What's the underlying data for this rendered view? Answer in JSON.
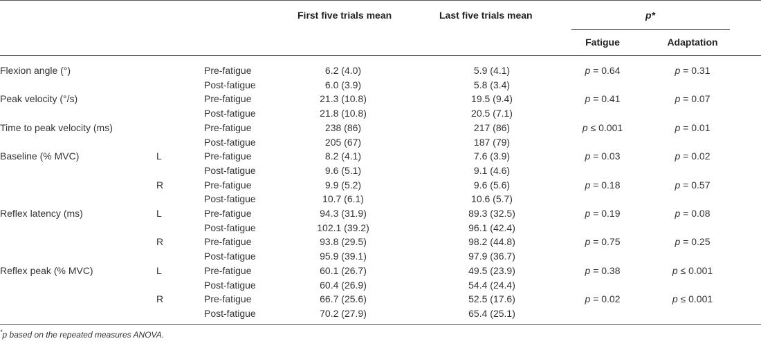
{
  "headers": {
    "first": "First five trials mean",
    "last": "Last five trials mean",
    "p": "p*",
    "fatigue": "Fatigue",
    "adaptation": "Adaptation"
  },
  "rows": [
    {
      "label": "Flexion angle (°)",
      "side": "",
      "cond": "Pre-fatigue",
      "first": "6.2 (4.0)",
      "last": "5.9 (4.1)",
      "fatigue": "p = 0.64",
      "adaptation": "p = 0.31"
    },
    {
      "label": "",
      "side": "",
      "cond": "Post-fatigue",
      "first": "6.0 (3.9)",
      "last": "5.8 (3.4)",
      "fatigue": "",
      "adaptation": ""
    },
    {
      "label": "Peak velocity (°/s)",
      "side": "",
      "cond": "Pre-fatigue",
      "first": "21.3 (10.8)",
      "last": "19.5 (9.4)",
      "fatigue": "p = 0.41",
      "adaptation": "p = 0.07"
    },
    {
      "label": "",
      "side": "",
      "cond": "Post-fatigue",
      "first": "21.8 (10.8)",
      "last": "20.5 (7.1)",
      "fatigue": "",
      "adaptation": ""
    },
    {
      "label": "Time to peak velocity (ms)",
      "side": "",
      "cond": "Pre-fatigue",
      "first": "238 (86)",
      "last": "217 (86)",
      "fatigue": "p ≤ 0.001",
      "adaptation": "p = 0.01"
    },
    {
      "label": "",
      "side": "",
      "cond": "Post-fatigue",
      "first": "205 (67)",
      "last": "187 (79)",
      "fatigue": "",
      "adaptation": ""
    },
    {
      "label": "Baseline (% MVC)",
      "side": "L",
      "cond": "Pre-fatigue",
      "first": "8.2 (4.1)",
      "last": "7.6 (3.9)",
      "fatigue": "p = 0.03",
      "adaptation": "p = 0.02"
    },
    {
      "label": "",
      "side": "",
      "cond": "Post-fatigue",
      "first": "9.6 (5.1)",
      "last": "9.1 (4.6)",
      "fatigue": "",
      "adaptation": ""
    },
    {
      "label": "",
      "side": "R",
      "cond": "Pre-fatigue",
      "first": "9.9 (5.2)",
      "last": "9.6 (5.6)",
      "fatigue": "p = 0.18",
      "adaptation": "p = 0.57"
    },
    {
      "label": "",
      "side": "",
      "cond": "Post-fatigue",
      "first": "10.7 (6.1)",
      "last": "10.6 (5.7)",
      "fatigue": "",
      "adaptation": ""
    },
    {
      "label": "Reflex latency (ms)",
      "side": "L",
      "cond": "Pre-fatigue",
      "first": "94.3 (31.9)",
      "last": "89.3 (32.5)",
      "fatigue": "p = 0.19",
      "adaptation": "p = 0.08"
    },
    {
      "label": "",
      "side": "",
      "cond": "Post-fatigue",
      "first": "102.1 (39.2)",
      "last": "96.1 (42.4)",
      "fatigue": "",
      "adaptation": ""
    },
    {
      "label": "",
      "side": "R",
      "cond": "Pre-fatigue",
      "first": "93.8 (29.5)",
      "last": "98.2 (44.8)",
      "fatigue": "p = 0.75",
      "adaptation": "p = 0.25"
    },
    {
      "label": "",
      "side": "",
      "cond": "Post-fatigue",
      "first": "95.9 (39.1)",
      "last": "97.9 (36.7)",
      "fatigue": "",
      "adaptation": ""
    },
    {
      "label": "Reflex peak (% MVC)",
      "side": "L",
      "cond": "Pre-fatigue",
      "first": "60.1 (26.7)",
      "last": "49.5 (23.9)",
      "fatigue": "p = 0.38",
      "adaptation": "p ≤ 0.001"
    },
    {
      "label": "",
      "side": "",
      "cond": "Post-fatigue",
      "first": "60.4 (26.9)",
      "last": "54.4 (24.4)",
      "fatigue": "",
      "adaptation": ""
    },
    {
      "label": "",
      "side": "R",
      "cond": "Pre-fatigue",
      "first": "66.7 (25.6)",
      "last": "52.5 (17.6)",
      "fatigue": "p = 0.02",
      "adaptation": "p ≤ 0.001"
    },
    {
      "label": "",
      "side": "",
      "cond": "Post-fatigue",
      "first": "70.2 (27.9)",
      "last": "65.4 (25.1)",
      "fatigue": "",
      "adaptation": ""
    }
  ],
  "footnote": {
    "mark": "*",
    "text": "p based on the repeated measures ANOVA."
  }
}
